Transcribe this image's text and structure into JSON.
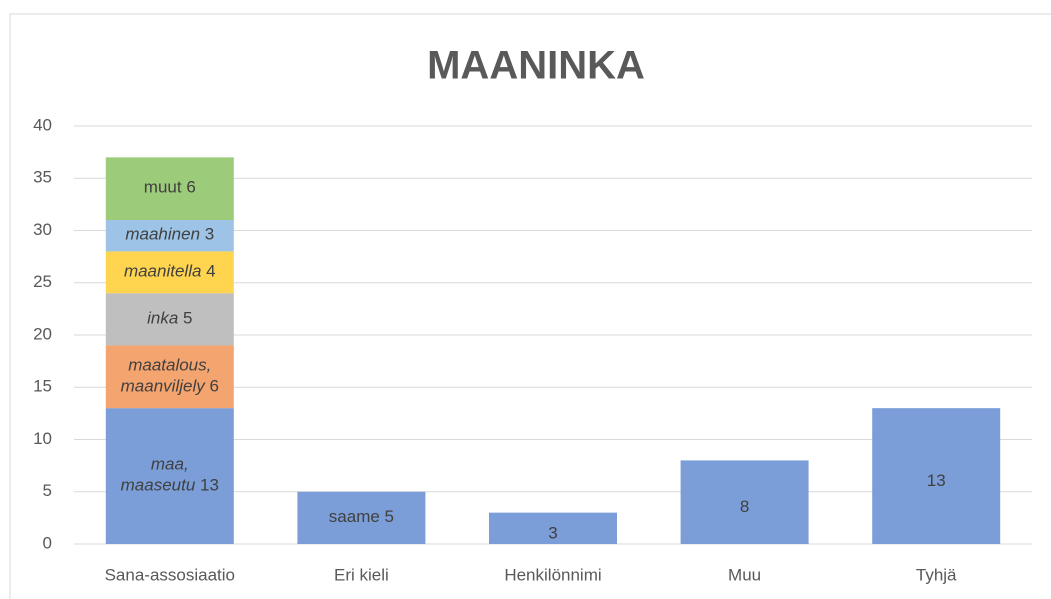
{
  "chart_data": {
    "type": "stacked_bar",
    "title": "MAANINKA",
    "categories": [
      "Sana-assosiaatio",
      "Eri kieli",
      "Henkilönnimi",
      "Muu",
      "Tyhjä"
    ],
    "series": [
      {
        "color": "#7b9ed8",
        "values": [
          13,
          5,
          3,
          8,
          13
        ],
        "label_prefixes": [
          {
            "lines": [
              "maa,",
              "maaseutu"
            ],
            "italic": true
          },
          {
            "lines": [
              "saame"
            ],
            "italic": false
          },
          null,
          null,
          null
        ]
      },
      {
        "color": "#f4a46e",
        "values": [
          6,
          null,
          null,
          null,
          null
        ],
        "label_prefixes": [
          {
            "lines": [
              "maatalous,",
              "maanviljely"
            ],
            "italic": true
          },
          null,
          null,
          null,
          null
        ]
      },
      {
        "color": "#bfbfbf",
        "values": [
          5,
          null,
          null,
          null,
          null
        ],
        "label_prefixes": [
          {
            "lines": [
              "inka"
            ],
            "italic": true
          },
          null,
          null,
          null,
          null
        ]
      },
      {
        "color": "#ffd54f",
        "values": [
          4,
          null,
          null,
          null,
          null
        ],
        "label_prefixes": [
          {
            "lines": [
              "maanitella"
            ],
            "italic": true
          },
          null,
          null,
          null,
          null
        ]
      },
      {
        "color": "#9dc3e6",
        "values": [
          3,
          null,
          null,
          null,
          null
        ],
        "label_prefixes": [
          {
            "lines": [
              "maahinen"
            ],
            "italic": true
          },
          null,
          null,
          null,
          null
        ]
      },
      {
        "color": "#9ccb7a",
        "values": [
          6,
          null,
          null,
          null,
          null
        ],
        "label_prefixes": [
          {
            "lines": [
              "muut"
            ],
            "italic": false
          },
          null,
          null,
          null,
          null
        ]
      }
    ],
    "ylim": [
      0,
      40
    ],
    "yticks": [
      0,
      5,
      10,
      15,
      20,
      25,
      30,
      35,
      40
    ],
    "grid": true
  }
}
